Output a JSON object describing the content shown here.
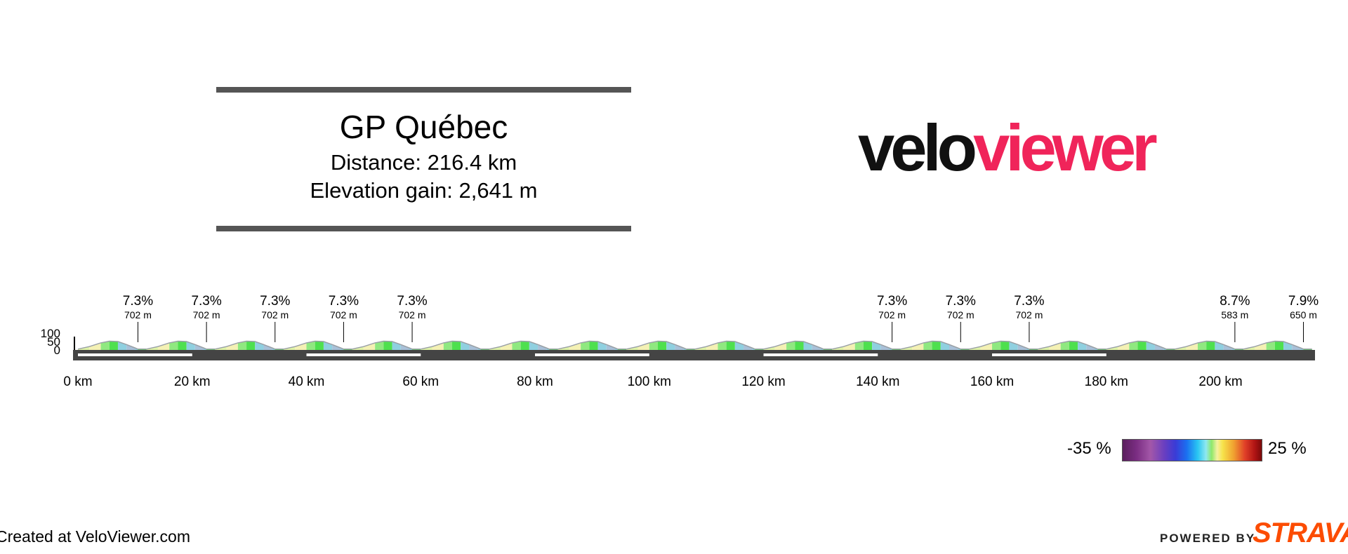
{
  "header": {
    "title": "GP Québec",
    "distance": "Distance: 216.4 km",
    "elevation": "Elevation gain: 2,641 m"
  },
  "logo": {
    "part1": "velo",
    "part2": "viewer",
    "colors": {
      "part1": "#111111",
      "part2": "#f0245a"
    }
  },
  "chart_data": {
    "type": "area",
    "xlabel": "",
    "ylabel": "",
    "x_unit": "km",
    "xlim": [
      0,
      216.4
    ],
    "ylim": [
      0,
      100
    ],
    "x_ticks": [
      "0 km",
      "20 km",
      "40 km",
      "60 km",
      "80 km",
      "100 km",
      "120 km",
      "140 km",
      "160 km",
      "180 km",
      "200 km"
    ],
    "y_ticks": [
      "100",
      "50",
      "0"
    ],
    "profile": {
      "laps": 18,
      "lap_length_km": 12.0,
      "x": [
        0,
        2.0,
        4.0,
        5.5,
        7.0,
        8.5,
        10.0,
        10.5,
        12.0
      ],
      "elevation": [
        5,
        20,
        42,
        52,
        50,
        32,
        12,
        5,
        5
      ],
      "gradient_pct": [
        5.0,
        7.3,
        1.5,
        0.5,
        -2.0,
        -6.0,
        -3.0,
        0.0
      ]
    },
    "climb_markers": [
      {
        "km": 10.5,
        "gradient": "7.3%",
        "elevation": "702 m"
      },
      {
        "km": 22.5,
        "gradient": "7.3%",
        "elevation": "702 m"
      },
      {
        "km": 34.5,
        "gradient": "7.3%",
        "elevation": "702 m"
      },
      {
        "km": 46.5,
        "gradient": "7.3%",
        "elevation": "702 m"
      },
      {
        "km": 58.5,
        "gradient": "7.3%",
        "elevation": "702 m"
      },
      {
        "km": 142.5,
        "gradient": "7.3%",
        "elevation": "702 m"
      },
      {
        "km": 154.5,
        "gradient": "7.3%",
        "elevation": "702 m"
      },
      {
        "km": 166.5,
        "gradient": "7.3%",
        "elevation": "702 m"
      },
      {
        "km": 202.5,
        "gradient": "8.7%",
        "elevation": "583 m"
      },
      {
        "km": 214.5,
        "gradient": "7.9%",
        "elevation": "650 m"
      }
    ],
    "legend": {
      "min": "-35 %",
      "max": "25 %"
    }
  },
  "footer": {
    "left": "Created at VeloViewer.com",
    "powered": "POWERED BY",
    "strava": "STRAVA"
  }
}
